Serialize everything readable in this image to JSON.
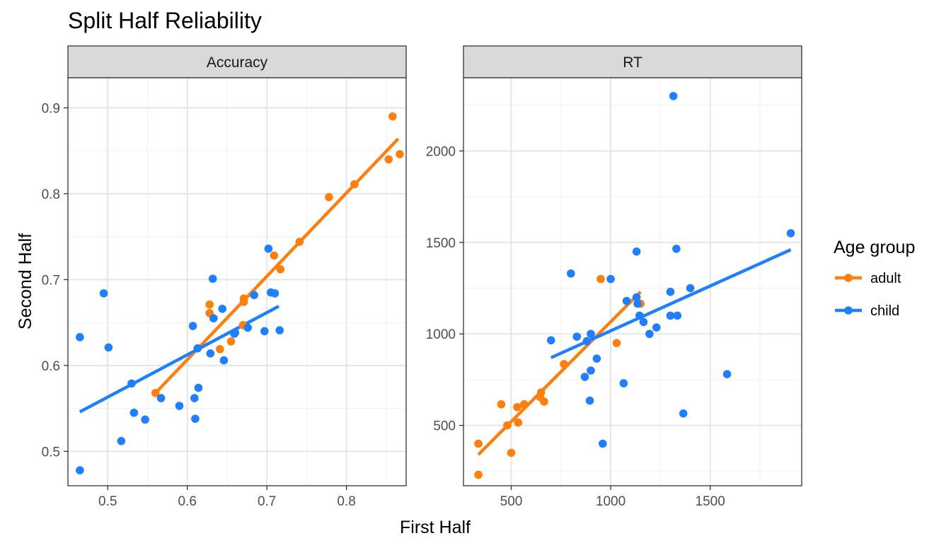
{
  "title": "Split Half Reliability",
  "xlabel": "First Half",
  "ylabel": "Second Half",
  "legend": {
    "title": "Age group",
    "position": "right",
    "entries": [
      {
        "key": "adult",
        "label": "adult",
        "color": "#FF7F0E"
      },
      {
        "key": "child",
        "label": "child",
        "color": "#1F7FFF"
      }
    ]
  },
  "chart_data": [
    {
      "type": "scatter",
      "panel": "Accuracy",
      "xlim": [
        0.45,
        0.875
      ],
      "ylim": [
        0.46,
        0.935
      ],
      "xticks": [
        0.5,
        0.6,
        0.7,
        0.8
      ],
      "xtick_labels": [
        "0.5",
        "0.6",
        "0.7",
        "0.8"
      ],
      "yticks": [
        0.5,
        0.6,
        0.7,
        0.8,
        0.9
      ],
      "ytick_labels": [
        "0.5",
        "0.6",
        "0.7",
        "0.8",
        "0.9"
      ],
      "grid": true,
      "series": [
        {
          "name": "adult",
          "points": [
            [
              0.56,
              0.568
            ],
            [
              0.628,
              0.671
            ],
            [
              0.628,
              0.661
            ],
            [
              0.641,
              0.619
            ],
            [
              0.655,
              0.628
            ],
            [
              0.67,
              0.647
            ],
            [
              0.671,
              0.674
            ],
            [
              0.671,
              0.678
            ],
            [
              0.709,
              0.728
            ],
            [
              0.717,
              0.712
            ],
            [
              0.741,
              0.744
            ],
            [
              0.778,
              0.796
            ],
            [
              0.81,
              0.811
            ],
            [
              0.853,
              0.84
            ],
            [
              0.858,
              0.89
            ],
            [
              0.867,
              0.846
            ]
          ],
          "trend": [
            [
              0.558,
              0.566
            ],
            [
              0.865,
              0.864
            ]
          ]
        },
        {
          "name": "child",
          "points": [
            [
              0.465,
              0.633
            ],
            [
              0.465,
              0.478
            ],
            [
              0.495,
              0.684
            ],
            [
              0.501,
              0.621
            ],
            [
              0.517,
              0.512
            ],
            [
              0.53,
              0.579
            ],
            [
              0.533,
              0.545
            ],
            [
              0.547,
              0.537
            ],
            [
              0.567,
              0.562
            ],
            [
              0.59,
              0.553
            ],
            [
              0.607,
              0.646
            ],
            [
              0.609,
              0.562
            ],
            [
              0.61,
              0.538
            ],
            [
              0.613,
              0.62
            ],
            [
              0.614,
              0.574
            ],
            [
              0.629,
              0.614
            ],
            [
              0.632,
              0.701
            ],
            [
              0.633,
              0.655
            ],
            [
              0.644,
              0.666
            ],
            [
              0.646,
              0.606
            ],
            [
              0.659,
              0.637
            ],
            [
              0.66,
              0.638
            ],
            [
              0.676,
              0.644
            ],
            [
              0.684,
              0.682
            ],
            [
              0.697,
              0.64
            ],
            [
              0.702,
              0.736
            ],
            [
              0.705,
              0.685
            ],
            [
              0.71,
              0.684
            ],
            [
              0.716,
              0.641
            ]
          ],
          "trend": [
            [
              0.465,
              0.546
            ],
            [
              0.715,
              0.669
            ]
          ]
        }
      ]
    },
    {
      "type": "scatter",
      "panel": "RT",
      "xlim": [
        260,
        1960
      ],
      "ylim": [
        170,
        2400
      ],
      "xticks": [
        500,
        1000,
        1500
      ],
      "xtick_labels": [
        "500",
        "1000",
        "1500"
      ],
      "yticks": [
        500,
        1000,
        1500,
        2000
      ],
      "ytick_labels": [
        "500",
        "1000",
        "1500",
        "2000"
      ],
      "grid": true,
      "series": [
        {
          "name": "adult",
          "points": [
            [
              335,
              400
            ],
            [
              335,
              230
            ],
            [
              450,
              615
            ],
            [
              480,
              500
            ],
            [
              500,
              350
            ],
            [
              530,
              600
            ],
            [
              535,
              515
            ],
            [
              565,
              615
            ],
            [
              645,
              655
            ],
            [
              650,
              680
            ],
            [
              665,
              630
            ],
            [
              765,
              835
            ],
            [
              950,
              1300
            ],
            [
              1030,
              950
            ],
            [
              1150,
              1165
            ]
          ],
          "trend": [
            [
              335,
              340
            ],
            [
              1150,
              1230
            ]
          ]
        },
        {
          "name": "child",
          "points": [
            [
              700,
              965
            ],
            [
              800,
              1330
            ],
            [
              830,
              985
            ],
            [
              870,
              765
            ],
            [
              880,
              960
            ],
            [
              895,
              635
            ],
            [
              900,
              800
            ],
            [
              900,
              1000
            ],
            [
              930,
              865
            ],
            [
              960,
              400
            ],
            [
              1000,
              1300
            ],
            [
              1065,
              730
            ],
            [
              1080,
              1180
            ],
            [
              1130,
              1450
            ],
            [
              1130,
              1200
            ],
            [
              1135,
              1165
            ],
            [
              1145,
              1100
            ],
            [
              1165,
              1065
            ],
            [
              1195,
              1000
            ],
            [
              1230,
              1035
            ],
            [
              1300,
              1230
            ],
            [
              1300,
              1100
            ],
            [
              1315,
              2300
            ],
            [
              1330,
              1465
            ],
            [
              1335,
              1100
            ],
            [
              1365,
              565
            ],
            [
              1400,
              1250
            ],
            [
              1585,
              780
            ],
            [
              1905,
              1550
            ]
          ],
          "trend": [
            [
              700,
              870
            ],
            [
              1905,
              1460
            ]
          ]
        }
      ]
    }
  ]
}
